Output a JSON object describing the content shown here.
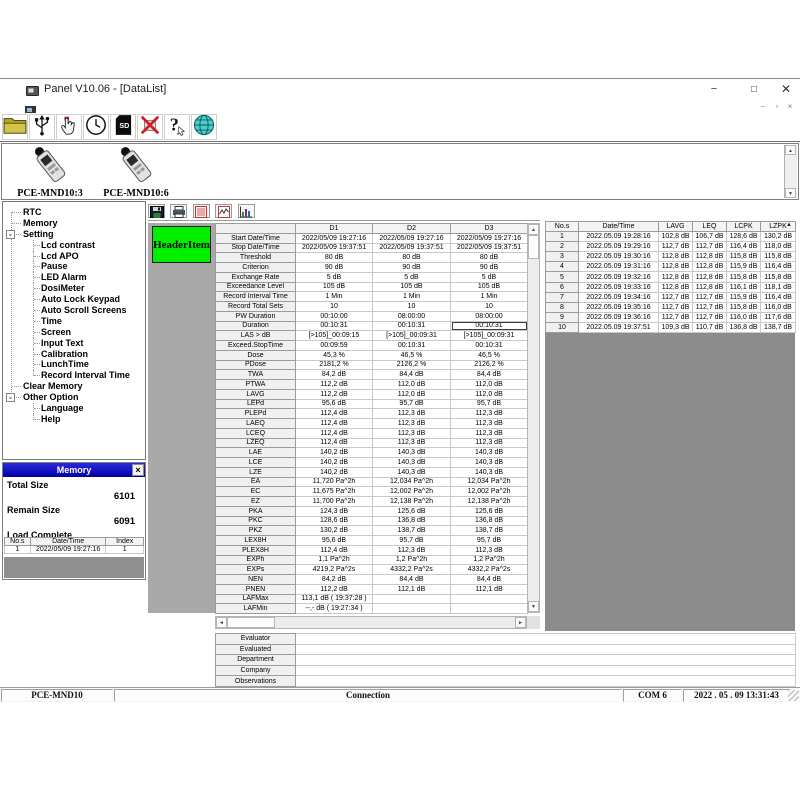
{
  "window": {
    "title": "Panel V10.06 - [DataList]",
    "controls": {
      "minimize": "−",
      "maximize": "□",
      "close": "✕"
    },
    "mdi_controls": {
      "minimize": "–",
      "restore": "▫",
      "close": "×"
    }
  },
  "glyphs": {
    "up": "▲",
    "down": "▼",
    "left": "◄",
    "right": "►",
    "tree_collapse": "-"
  },
  "icons": {
    "sd_label": "SD",
    "help_glyph": "?"
  },
  "devices": [
    {
      "label": "PCE-MND10:3"
    },
    {
      "label": "PCE-MND10:6"
    }
  ],
  "tree": {
    "items": [
      {
        "label": "RTC",
        "level": 0
      },
      {
        "label": "Memory",
        "level": 0
      },
      {
        "label": "Setting",
        "level": 0,
        "expandable": true
      },
      {
        "label": "Lcd contrast",
        "level": 1
      },
      {
        "label": "Lcd APO",
        "level": 1
      },
      {
        "label": "Pause",
        "level": 1
      },
      {
        "label": "LED Alarm",
        "level": 1
      },
      {
        "label": "DosiMeter",
        "level": 1
      },
      {
        "label": "Auto Lock Keypad",
        "level": 1
      },
      {
        "label": "Auto Scroll Screens",
        "level": 1
      },
      {
        "label": "Time",
        "level": 1
      },
      {
        "label": "Screen",
        "level": 1
      },
      {
        "label": "Input Text",
        "level": 1
      },
      {
        "label": "Calibration",
        "level": 1
      },
      {
        "label": "LunchTime",
        "level": 1
      },
      {
        "label": "Record Interval Time",
        "level": 1
      },
      {
        "label": "Clear Memory",
        "level": 0
      },
      {
        "label": "Other Option",
        "level": 0,
        "expandable": true
      },
      {
        "label": "Language",
        "level": 1
      },
      {
        "label": "Help",
        "level": 1
      }
    ]
  },
  "memory_panel": {
    "title": "Memory",
    "total_size_label": "Total Size",
    "total_size": "6101",
    "remain_size_label": "Remain Size",
    "remain_size": "6091",
    "status": "Load Complete",
    "table": {
      "headers": [
        "No.s",
        "Date/Time",
        "Index"
      ],
      "rows": [
        [
          "1",
          "2022/05/09 19:27:16",
          "1"
        ]
      ]
    }
  },
  "header_item_label": "HeaderItem",
  "data_table": {
    "columns": [
      "",
      "D1",
      "D2",
      "D3"
    ],
    "selected_cell": {
      "row": 9,
      "col": 3
    },
    "rows": [
      [
        "Start Date/Time",
        "2022/05/09 19:27:16",
        "2022/05/09 19:27:16",
        "2022/05/09 19:27:16"
      ],
      [
        "Stop Date/Time",
        "2022/05/09 19:37:51",
        "2022/05/09 19:37:51",
        "2022/05/09 19:37:51"
      ],
      [
        "Threshold",
        "80 dB",
        "80 dB",
        "80 dB"
      ],
      [
        "Criterion",
        "90 dB",
        "90 dB",
        "90 dB"
      ],
      [
        "Exchange Rate",
        "5 dB",
        "5 dB",
        "5 dB"
      ],
      [
        "Exceedance Level",
        "105 dB",
        "105 dB",
        "105 dB"
      ],
      [
        "Record Interval Time",
        "1 Min",
        "1 Min",
        "1 Min"
      ],
      [
        "Record Total Sets",
        "10",
        "10",
        "10"
      ],
      [
        "PW Duration",
        "00:10:00",
        "08:00:00",
        "08:00:00"
      ],
      [
        "Duration",
        "00:10:31",
        "00:10:31",
        "00:10:31"
      ],
      [
        "LAS > dB",
        "[>105]_00:09:15",
        "[>105]_00:09:31",
        "[>105]_00:09:31"
      ],
      [
        "Exceed.StopTime",
        "00:09:59",
        "00:10:31",
        "00:10:31"
      ],
      [
        "Dose",
        "45,3 %",
        "46,5 %",
        "46,5 %"
      ],
      [
        "PDose",
        "2181,2 %",
        "2126,2 %",
        "2126,2 %"
      ],
      [
        "TWA",
        "84,2 dB",
        "84,4 dB",
        "84,4 dB"
      ],
      [
        "PTWA",
        "112,2 dB",
        "112,0 dB",
        "112,0 dB"
      ],
      [
        "LAVG",
        "112,2 dB",
        "112,0 dB",
        "112,0 dB"
      ],
      [
        "LEPd",
        "95,6 dB",
        "95,7 dB",
        "95,7 dB"
      ],
      [
        "PLEPd",
        "112,4 dB",
        "112,3 dB",
        "112,3 dB"
      ],
      [
        "LAEQ",
        "112,4 dB",
        "112,3 dB",
        "112,3 dB"
      ],
      [
        "LCEQ",
        "112,4 dB",
        "112,3 dB",
        "112,3 dB"
      ],
      [
        "LZEQ",
        "112,4 dB",
        "112,3 dB",
        "112,3 dB"
      ],
      [
        "LAE",
        "140,2 dB",
        "140,3 dB",
        "140,3 dB"
      ],
      [
        "LCE",
        "140,2 dB",
        "140,3 dB",
        "140,3 dB"
      ],
      [
        "LZE",
        "140,2 dB",
        "140,3 dB",
        "140,3 dB"
      ],
      [
        "EA",
        "11,720 Pa^2h",
        "12,034 Pa^2h",
        "12,034 Pa^2h"
      ],
      [
        "EC",
        "11,675 Pa^2h",
        "12,002 Pa^2h",
        "12,002 Pa^2h"
      ],
      [
        "EZ",
        "11,700 Pa^2h",
        "12,138 Pa^2h",
        "12,138 Pa^2h"
      ],
      [
        "PKA",
        "124,3 dB",
        "125,6 dB",
        "125,6 dB"
      ],
      [
        "PKC",
        "128,6 dB",
        "136,8 dB",
        "136,8 dB"
      ],
      [
        "PKZ",
        "130,2 dB",
        "138,7 dB",
        "138,7 dB"
      ],
      [
        "LEX8H",
        "95,6 dB",
        "95,7 dB",
        "95,7 dB"
      ],
      [
        "PLEX8H",
        "112,4 dB",
        "112,3 dB",
        "112,3 dB"
      ],
      [
        "EXPh",
        "1,1 Pa^2h",
        "1,2 Pa^2h",
        "1,2 Pa^2h"
      ],
      [
        "EXPs",
        "4219,2 Pa^2s",
        "4332,2 Pa^2s",
        "4332,2 Pa^2s"
      ],
      [
        "NEN",
        "84,2 dB",
        "84,4 dB",
        "84,4 dB"
      ],
      [
        "PNEN",
        "112,2 dB",
        "112,1 dB",
        "112,1 dB"
      ],
      [
        "LAFMax",
        "113,1 dB ( 19:37:28 )",
        "",
        ""
      ],
      [
        "LAFMin",
        "--,- dB ( 19:27:34 )",
        "",
        ""
      ]
    ]
  },
  "summary_table": {
    "headers": [
      "No.s",
      "Date/Time",
      "LAVG",
      "LEQ",
      "LCPK",
      "LZPK"
    ],
    "rows": [
      [
        "1",
        "2022.05.09 19:28:16",
        "102,8 dB",
        "106,7 dB",
        "128,6 dB",
        "130,2 dB"
      ],
      [
        "2",
        "2022.05.09 19:29:16",
        "112,7 dB",
        "112,7 dB",
        "116,4 dB",
        "118,0 dB"
      ],
      [
        "3",
        "2022.05.09 19:30:16",
        "112,8 dB",
        "112,8 dB",
        "115,8 dB",
        "115,8 dB"
      ],
      [
        "4",
        "2022.05.09 19:31:16",
        "112,8 dB",
        "112,8 dB",
        "115,9 dB",
        "116,4 dB"
      ],
      [
        "5",
        "2022.05.09 19:32:16",
        "112,8 dB",
        "112,8 dB",
        "115,8 dB",
        "115,8 dB"
      ],
      [
        "6",
        "2022.05.09 19:33:16",
        "112,8 dB",
        "112,8 dB",
        "116,1 dB",
        "118,1 dB"
      ],
      [
        "7",
        "2022.05.09 19:34:16",
        "112,7 dB",
        "112,7 dB",
        "115,9 dB",
        "116,4 dB"
      ],
      [
        "8",
        "2022.05.09 19:35:16",
        "112,7 dB",
        "112,7 dB",
        "115,8 dB",
        "116,0 dB"
      ],
      [
        "9",
        "2022.05.09 19:36:16",
        "112,7 dB",
        "112,7 dB",
        "116,0 dB",
        "117,6 dB"
      ],
      [
        "10",
        "2022.05.09 19:37:51",
        "109,3 dB",
        "110,7 dB",
        "136,8 dB",
        "138,7 dB"
      ]
    ]
  },
  "info_form": {
    "rows": [
      {
        "label": "Evaluator",
        "value": ""
      },
      {
        "label": "Evaluated",
        "value": ""
      },
      {
        "label": "Department",
        "value": ""
      },
      {
        "label": "Company",
        "value": ""
      },
      {
        "label": "Observations",
        "value": ""
      }
    ]
  },
  "status_bar": {
    "device": "PCE-MND10",
    "connection": "Connection",
    "com_port": "COM 6",
    "datetime": "2022 . 05 . 09  13:31:43"
  },
  "colors": {
    "header_item_green": "#00F000",
    "memory_title_blue": "#1a1ad0"
  }
}
